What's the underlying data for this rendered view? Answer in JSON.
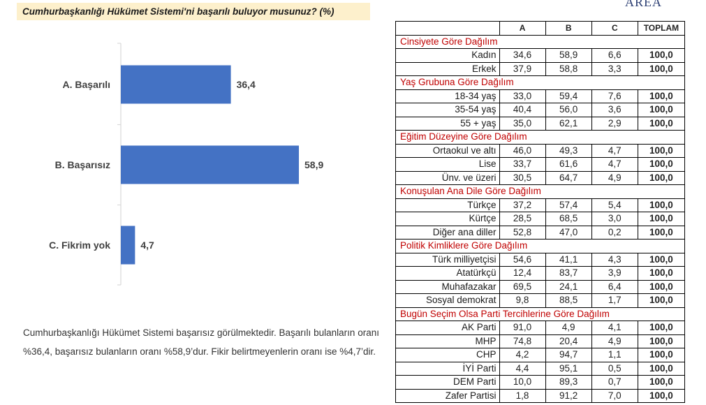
{
  "header": {
    "title": "Cumhurbaşkanlığı Hükümet Sistemi'ni başarılı buluyor musunuz? (%)",
    "logo": "AREA"
  },
  "chart_data": {
    "type": "bar",
    "orientation": "horizontal",
    "categories": [
      "A. Başarılı",
      "B. Başarısız",
      "C. Fikrim yok"
    ],
    "values": [
      36.4,
      58.9,
      4.7
    ],
    "value_labels": [
      "36,4",
      "58,9",
      "4,7"
    ],
    "title": "",
    "xlabel": "",
    "ylabel": "",
    "color": "#4472c4",
    "grid": false
  },
  "description": "Cumhurbaşkanlığı Hükümet Sistemi başarısız görülmektedir. Başarılı bulanların oranı %36,4, başarısız bulanların oranı %58,9’dur. Fikir belirtmeyenlerin oranı ise %4,7’dir.",
  "table": {
    "headers": [
      "",
      "A",
      "B",
      "C",
      "TOPLAM"
    ],
    "sections": [
      {
        "title": "Cinsiyete Göre Dağılım",
        "rows": [
          [
            "Kadın",
            "34,6",
            "58,9",
            "6,6",
            "100,0"
          ],
          [
            "Erkek",
            "37,9",
            "58,8",
            "3,3",
            "100,0"
          ]
        ]
      },
      {
        "title": "Yaş Grubuna Göre Dağılım",
        "rows": [
          [
            "18-34 yaş",
            "33,0",
            "59,4",
            "7,6",
            "100,0"
          ],
          [
            "35-54 yaş",
            "40,4",
            "56,0",
            "3,6",
            "100,0"
          ],
          [
            "55 + yaş",
            "35,0",
            "62,1",
            "2,9",
            "100,0"
          ]
        ]
      },
      {
        "title": "Eğitim Düzeyine Göre Dağılım",
        "rows": [
          [
            "Ortaokul ve altı",
            "46,0",
            "49,3",
            "4,7",
            "100,0"
          ],
          [
            "Lise",
            "33,7",
            "61,6",
            "4,7",
            "100,0"
          ],
          [
            "Ünv. ve üzeri",
            "30,5",
            "64,7",
            "4,9",
            "100,0"
          ]
        ]
      },
      {
        "title": "Konuşulan Ana Dile Göre Dağılım",
        "rows": [
          [
            "Türkçe",
            "37,2",
            "57,4",
            "5,4",
            "100,0"
          ],
          [
            "Kürtçe",
            "28,5",
            "68,5",
            "3,0",
            "100,0"
          ],
          [
            "Diğer ana diller",
            "52,8",
            "47,0",
            "0,2",
            "100,0"
          ]
        ]
      },
      {
        "title": "Politik Kimliklere Göre Dağılım",
        "rows": [
          [
            "Türk milliyetçisi",
            "54,6",
            "41,1",
            "4,3",
            "100,0"
          ],
          [
            "Atatürkçü",
            "12,4",
            "83,7",
            "3,9",
            "100,0"
          ],
          [
            "Muhafazakar",
            "69,5",
            "24,1",
            "6,4",
            "100,0"
          ],
          [
            "Sosyal demokrat",
            "9,8",
            "88,5",
            "1,7",
            "100,0"
          ]
        ]
      },
      {
        "title": "Bugün Seçim Olsa Parti Tercihlerine Göre Dağılım",
        "rows": [
          [
            "AK Parti",
            "91,0",
            "4,9",
            "4,1",
            "100,0"
          ],
          [
            "MHP",
            "74,8",
            "20,4",
            "4,9",
            "100,0"
          ],
          [
            "CHP",
            "4,2",
            "94,7",
            "1,1",
            "100,0"
          ],
          [
            "İYİ Parti",
            "4,4",
            "95,1",
            "0,5",
            "100,0"
          ],
          [
            "DEM Parti",
            "10,0",
            "89,3",
            "0,7",
            "100,0"
          ],
          [
            "Zafer Partisi",
            "1,8",
            "91,2",
            "7,0",
            "100,0"
          ]
        ]
      }
    ]
  }
}
